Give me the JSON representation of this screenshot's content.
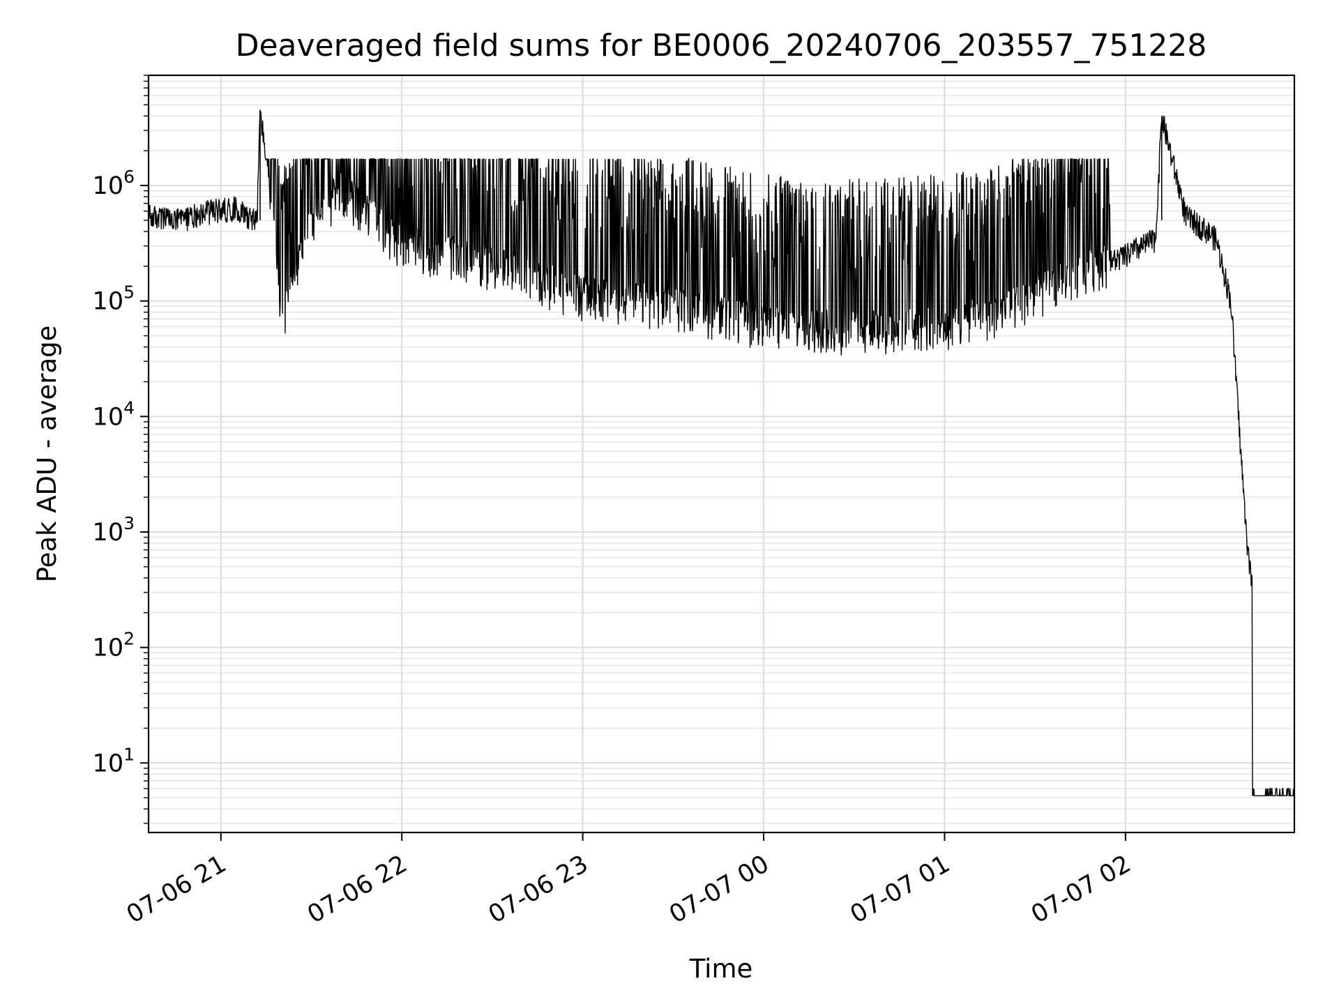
{
  "chart_data": {
    "type": "line",
    "title": "Deaveraged field sums for BE0006_20240706_203557_751228",
    "xlabel": "Time",
    "ylabel": "Peak ADU - average",
    "yscale": "log",
    "ylim": [
      2.5,
      9000000
    ],
    "xlim": [
      "2024-07-06 20:36",
      "2024-07-07 02:56"
    ],
    "x_ticks": [
      {
        "label": "07-06 21",
        "value": "2024-07-06 21:00"
      },
      {
        "label": "07-06 22",
        "value": "2024-07-06 22:00"
      },
      {
        "label": "07-06 23",
        "value": "2024-07-06 23:00"
      },
      {
        "label": "07-07 00",
        "value": "2024-07-07 00:00"
      },
      {
        "label": "07-07 01",
        "value": "2024-07-07 01:00"
      },
      {
        "label": "07-07 02",
        "value": "2024-07-07 02:00"
      }
    ],
    "y_ticks": [
      {
        "base": "10",
        "exp": "1",
        "value": 10
      },
      {
        "base": "10",
        "exp": "2",
        "value": 100
      },
      {
        "base": "10",
        "exp": "3",
        "value": 1000
      },
      {
        "base": "10",
        "exp": "4",
        "value": 10000
      },
      {
        "base": "10",
        "exp": "5",
        "value": 100000
      },
      {
        "base": "10",
        "exp": "6",
        "value": 1000000
      }
    ],
    "grid": true,
    "line_color": "#000000",
    "series": [
      {
        "x": [
          "2024-07-06 20:36",
          "2024-07-06 20:45",
          "2024-07-06 20:55",
          "2024-07-06 21:05",
          "2024-07-06 21:12",
          "2024-07-06 21:13",
          "2024-07-06 21:18",
          "2024-07-06 21:20",
          "2024-07-06 21:30",
          "2024-07-06 21:40",
          "2024-07-06 22:00",
          "2024-07-06 22:15",
          "2024-07-06 22:30",
          "2024-07-06 22:45",
          "2024-07-06 23:00",
          "2024-07-06 23:30",
          "2024-07-07 00:00",
          "2024-07-07 00:30",
          "2024-07-07 01:00",
          "2024-07-07 01:20",
          "2024-07-07 01:40",
          "2024-07-07 02:00",
          "2024-07-07 02:10",
          "2024-07-07 02:12",
          "2024-07-07 02:20",
          "2024-07-07 02:25",
          "2024-07-07 02:30",
          "2024-07-07 02:35",
          "2024-07-07 02:40",
          "2024-07-07 02:50",
          "2024-07-07 02:56"
        ],
        "y": [
          550000,
          500000,
          600000,
          650000,
          500000,
          4500000,
          400000,
          55000,
          500000,
          900000,
          300000,
          250000,
          200000,
          150000,
          110000,
          90000,
          60000,
          55000,
          60000,
          80000,
          150000,
          250000,
          350000,
          4000000,
          550000,
          450000,
          350000,
          100000,
          1000,
          5.2,
          5.2
        ]
      }
    ]
  }
}
